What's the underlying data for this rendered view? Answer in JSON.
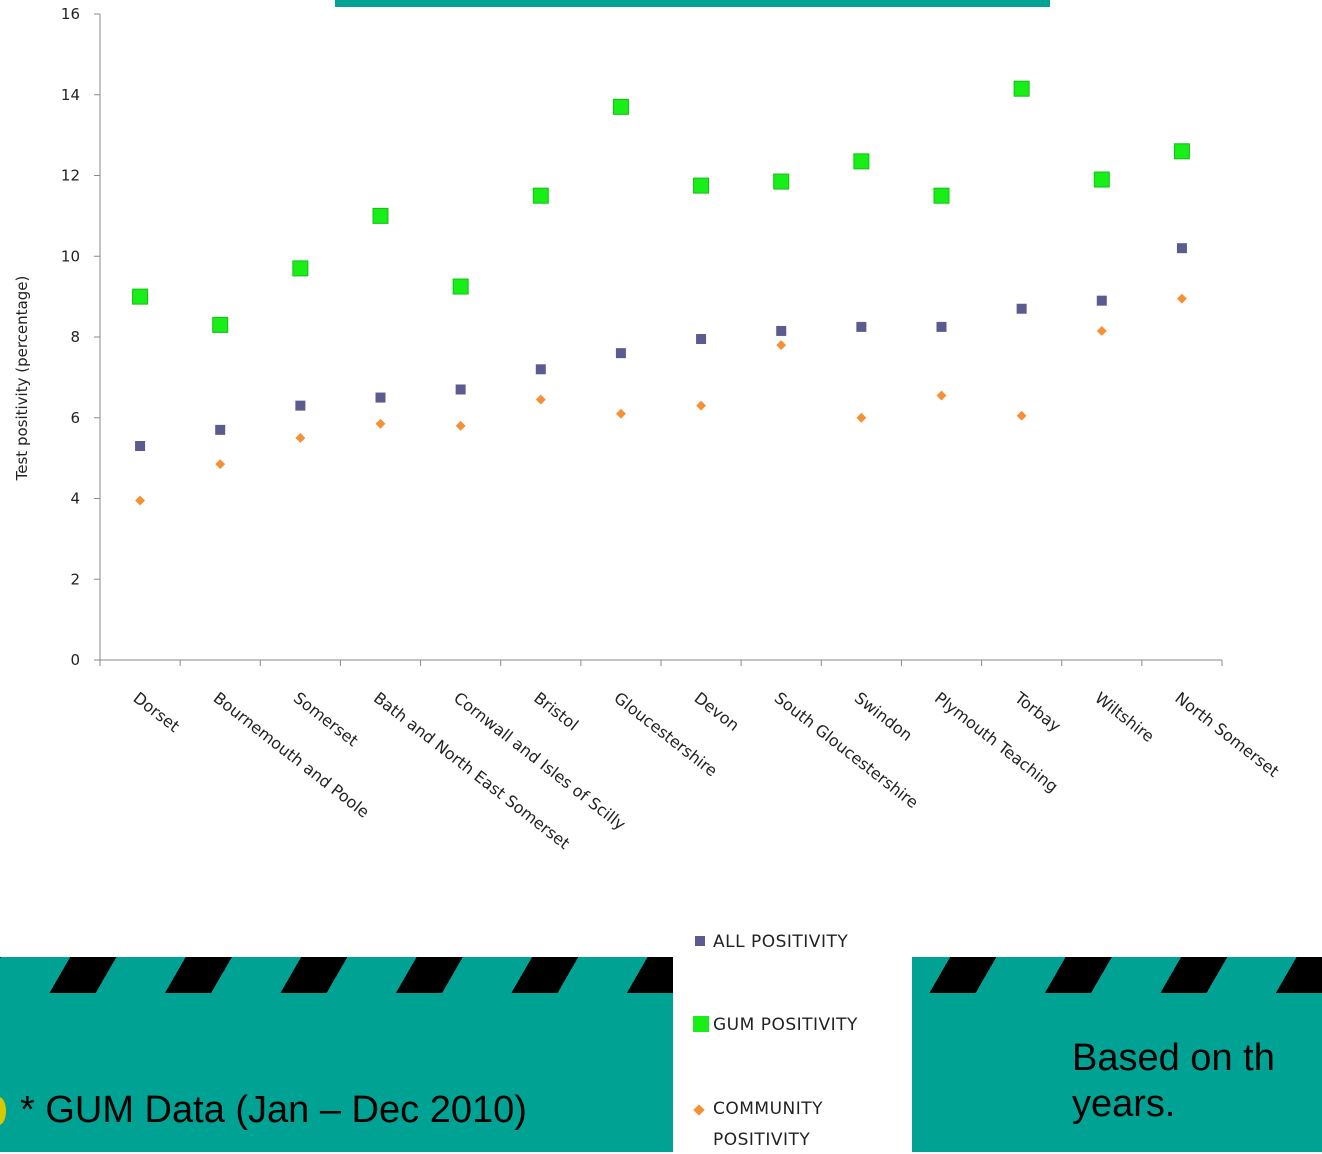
{
  "chart_data": {
    "type": "scatter",
    "ylabel": "Test positivity (percentage)",
    "ylim": [
      0,
      16
    ],
    "yticks": [
      0,
      2,
      4,
      6,
      8,
      10,
      12,
      14,
      16
    ],
    "categories": [
      "Dorset",
      "Bournemouth and Poole",
      "Somerset",
      "Bath and North East Somerset",
      "Cornwall and Isles of Scilly",
      "Bristol",
      "Gloucestershire",
      "Devon",
      "South Gloucestershire",
      "Swindon",
      "Plymouth Teaching",
      "Torbay",
      "Wiltshire",
      "North Somerset"
    ],
    "series": [
      {
        "name": "ALL POSITIVITY",
        "marker": "square-small",
        "color": "#5b5b8f",
        "values": [
          5.3,
          5.7,
          6.3,
          6.5,
          6.7,
          7.2,
          7.6,
          7.95,
          8.15,
          8.25,
          8.25,
          8.7,
          8.9,
          10.2
        ]
      },
      {
        "name": "GUM POSITIVITY",
        "marker": "square-large",
        "color": "#18ee18",
        "values": [
          9.0,
          8.3,
          9.7,
          11.0,
          9.25,
          11.5,
          13.7,
          11.75,
          11.85,
          12.35,
          11.5,
          14.15,
          11.9,
          12.6
        ]
      },
      {
        "name": "COMMUNITY POSITIVITY",
        "name_lines": [
          "COMMUNITY",
          "POSITIVITY"
        ],
        "marker": "diamond",
        "color": "#f59034",
        "values": [
          3.95,
          4.85,
          5.5,
          5.85,
          5.8,
          6.45,
          6.1,
          6.3,
          7.8,
          6.0,
          6.55,
          6.05,
          8.15,
          8.95
        ]
      }
    ],
    "grid": false,
    "legend_position": "bottom"
  },
  "panels": {
    "footnote": "* GUM Data (Jan – Dec 2010)",
    "right_line1": "Based on th",
    "right_line2": "years."
  },
  "colors": {
    "teal": "#00a294",
    "stripe": "#000000"
  }
}
